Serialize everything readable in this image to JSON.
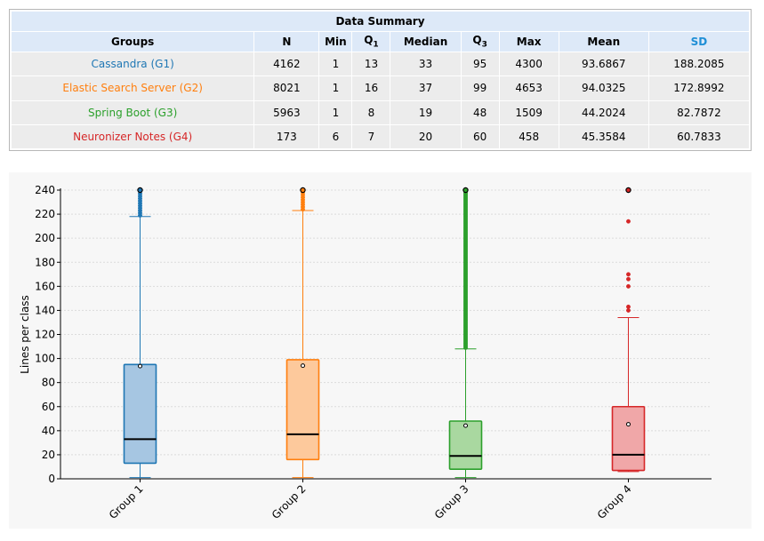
{
  "summary": {
    "title": "Data Summary",
    "headers": {
      "groups": "Groups",
      "n": "N",
      "min": "Min",
      "q1_base": "Q",
      "q1_sub": "1",
      "median": "Median",
      "q3_base": "Q",
      "q3_sub": "3",
      "max": "Max",
      "mean": "Mean",
      "sd": "SD"
    },
    "rows": [
      {
        "group": "Cassandra (G1)",
        "color": "#1f77b4",
        "n": "4162",
        "min": "1",
        "q1": "13",
        "median": "33",
        "q3": "95",
        "max": "4300",
        "mean": "93.6867",
        "sd": "188.2085"
      },
      {
        "group": "Elastic Search Server (G2)",
        "color": "#ff7f0e",
        "n": "8021",
        "min": "1",
        "q1": "16",
        "median": "37",
        "q3": "99",
        "max": "4653",
        "mean": "94.0325",
        "sd": "172.8992"
      },
      {
        "group": "Spring Boot (G3)",
        "color": "#2ca02c",
        "n": "5963",
        "min": "1",
        "q1": "8",
        "median": "19",
        "q3": "48",
        "max": "1509",
        "mean": "44.2024",
        "sd": "82.7872"
      },
      {
        "group": "Neuronizer Notes (G4)",
        "color": "#d62728",
        "n": "173",
        "min": "6",
        "q1": "7",
        "median": "20",
        "q3": "60",
        "max": "458",
        "mean": "45.3584",
        "sd": "60.7833"
      }
    ]
  },
  "chart_data": {
    "type": "box",
    "ylabel": "Lines per class",
    "ylim": [
      0,
      240
    ],
    "yticks": [
      0,
      20,
      40,
      60,
      80,
      100,
      120,
      140,
      160,
      180,
      200,
      220,
      240
    ],
    "grid": true,
    "categories": [
      "Group 1",
      "Group 2",
      "Group 3",
      "Group 4"
    ],
    "boxes": [
      {
        "name": "Group 1",
        "color": "#1f77b4",
        "fill": "#a6c6e2",
        "whisker_low": 1,
        "q1": 13,
        "median": 33,
        "q3": 95,
        "whisker_high": 218,
        "mean": 93.6867,
        "outliers": [
          219,
          221,
          223,
          225,
          227,
          229,
          231,
          233,
          235,
          237,
          239
        ],
        "capped_outlier": 240
      },
      {
        "name": "Group 2",
        "color": "#ff7f0e",
        "fill": "#fdc99c",
        "whisker_low": 1,
        "q1": 16,
        "median": 37,
        "q3": 99,
        "whisker_high": 223,
        "mean": 94.0325,
        "outliers": [
          224,
          226,
          228,
          230,
          232,
          234,
          236,
          238
        ],
        "capped_outlier": 240
      },
      {
        "name": "Group 3",
        "color": "#2ca02c",
        "fill": "#a9d8a0",
        "whisker_low": 1,
        "q1": 8,
        "median": 19,
        "q3": 48,
        "whisker_high": 108,
        "mean": 44.2024,
        "outliers_range": [
          109,
          239
        ],
        "capped_outlier": 240
      },
      {
        "name": "Group 4",
        "color": "#d62728",
        "fill": "#f0a7a8",
        "whisker_low": 6,
        "q1": 7,
        "median": 20,
        "q3": 60,
        "whisker_high": 134,
        "mean": 45.3584,
        "outliers": [
          140,
          143,
          160,
          166,
          170,
          214
        ],
        "capped_outlier": 240
      }
    ]
  }
}
